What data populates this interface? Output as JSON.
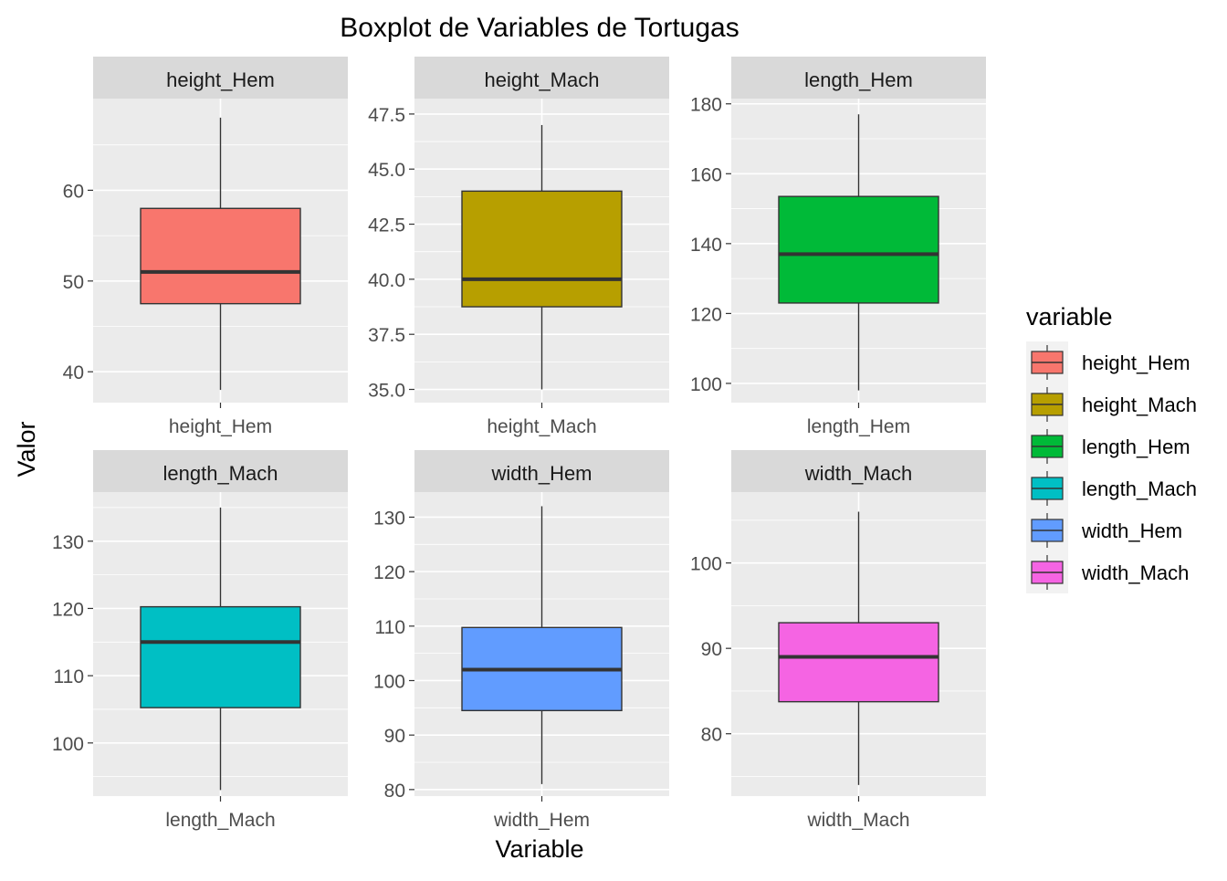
{
  "chart_data": {
    "type": "boxplot",
    "title": "Boxplot de Variables de Tortugas",
    "xlabel": "Variable",
    "ylabel": "Valor",
    "facet_scales": "free",
    "grid": true,
    "legend": {
      "title": "variable",
      "position": "right",
      "items": [
        {
          "label": "height_Hem",
          "color": "#F8766D"
        },
        {
          "label": "height_Mach",
          "color": "#B79F00"
        },
        {
          "label": "length_Hem",
          "color": "#00BA38"
        },
        {
          "label": "length_Mach",
          "color": "#00BFC4"
        },
        {
          "label": "width_Hem",
          "color": "#619CFF"
        },
        {
          "label": "width_Mach",
          "color": "#F564E3"
        }
      ]
    },
    "panels": [
      {
        "strip": "height_Hem",
        "category": "height_Hem",
        "color": "#F8766D",
        "ylim": [
          36.6,
          70.1
        ],
        "yticks": [
          40,
          50,
          60
        ],
        "ytick_labels": [
          "40",
          "50",
          "60"
        ],
        "stats": {
          "min": 38,
          "q1": 47.5,
          "median": 51,
          "q3": 58,
          "max": 68
        }
      },
      {
        "strip": "height_Mach",
        "category": "height_Mach",
        "color": "#B79F00",
        "ylim": [
          34.4,
          48.2
        ],
        "yticks": [
          35,
          37.5,
          40,
          42.5,
          45,
          47.5
        ],
        "ytick_labels": [
          "35.0",
          "37.5",
          "40.0",
          "42.5",
          "45.0",
          "47.5"
        ],
        "stats": {
          "min": 35,
          "q1": 38.75,
          "median": 40,
          "q3": 44,
          "max": 47
        }
      },
      {
        "strip": "length_Hem",
        "category": "length_Hem",
        "color": "#00BA38",
        "ylim": [
          94.5,
          181.5
        ],
        "yticks": [
          100,
          120,
          140,
          160,
          180
        ],
        "ytick_labels": [
          "100",
          "120",
          "140",
          "160",
          "180"
        ],
        "stats": {
          "min": 98,
          "q1": 123,
          "median": 137,
          "q3": 153.5,
          "max": 177
        }
      },
      {
        "strip": "length_Mach",
        "category": "length_Mach",
        "color": "#00BFC4",
        "ylim": [
          92.1,
          137.3
        ],
        "yticks": [
          100,
          110,
          120,
          130
        ],
        "ytick_labels": [
          "100",
          "110",
          "120",
          "130"
        ],
        "stats": {
          "min": 93,
          "q1": 105.25,
          "median": 115,
          "q3": 120.25,
          "max": 135
        }
      },
      {
        "strip": "width_Hem",
        "category": "width_Hem",
        "color": "#619CFF",
        "ylim": [
          78.8,
          134.6
        ],
        "yticks": [
          80,
          90,
          100,
          110,
          120,
          130
        ],
        "ytick_labels": [
          "80",
          "90",
          "100",
          "110",
          "120",
          "130"
        ],
        "stats": {
          "min": 81,
          "q1": 94.5,
          "median": 102,
          "q3": 109.75,
          "max": 132
        }
      },
      {
        "strip": "width_Mach",
        "category": "width_Mach",
        "color": "#F564E3",
        "ylim": [
          72.7,
          108.3
        ],
        "yticks": [
          80,
          90,
          100
        ],
        "ytick_labels": [
          "80",
          "90",
          "100"
        ],
        "stats": {
          "min": 74,
          "q1": 83.75,
          "median": 89,
          "q3": 93,
          "max": 106
        }
      }
    ]
  }
}
